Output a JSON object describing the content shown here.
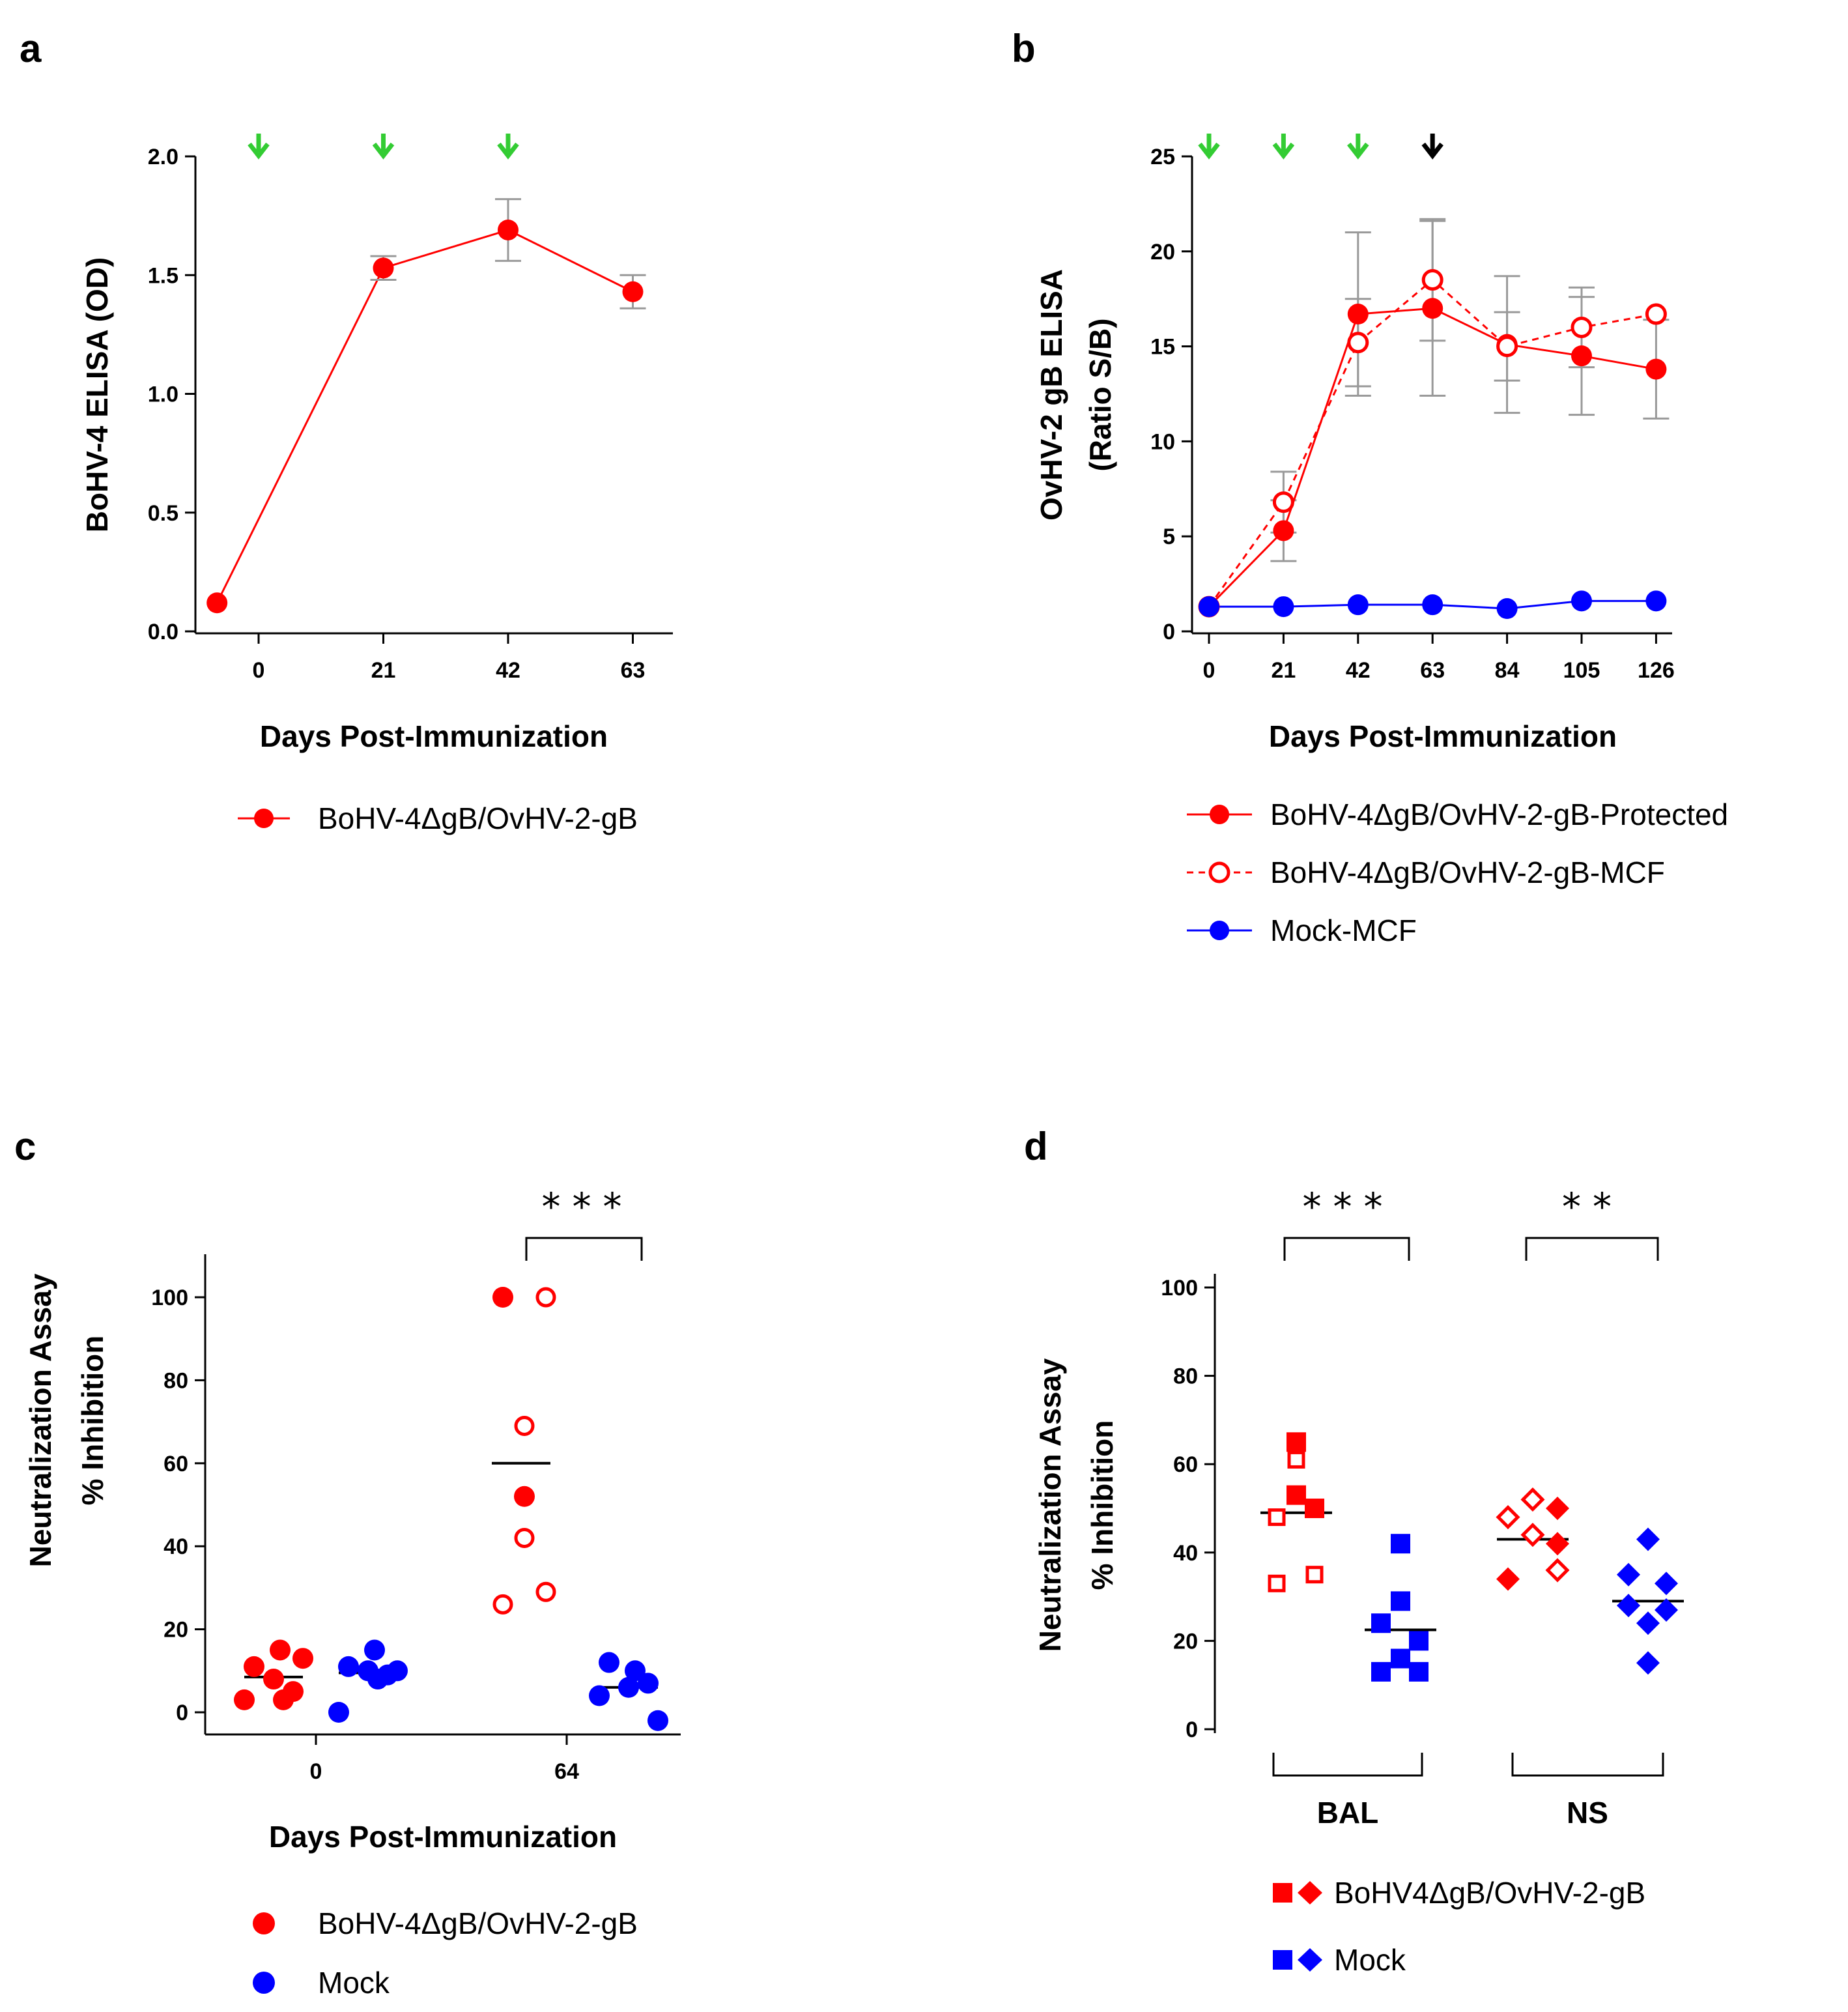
{
  "chart_data": [
    {
      "panel": "a",
      "type": "line",
      "xlabel": "Days Post-Immunization",
      "ylabel": "BoHV-4 ELISA (OD)",
      "ylim": [
        0,
        2.0
      ],
      "yticks": [
        "0.0",
        "0.5",
        "1.0",
        "1.5",
        "2.0"
      ],
      "xticks": [
        "0",
        "21",
        "42",
        "63"
      ],
      "arrows": {
        "color": "#33cc33",
        "days": [
          0,
          21,
          42
        ]
      },
      "series": [
        {
          "name": "BoHV-4ΔgB/OvHV-2-gB",
          "color": "#ff0000",
          "marker": "filled-circle",
          "line": "solid",
          "x": [
            -7,
            21,
            42,
            63
          ],
          "y": [
            0.12,
            1.53,
            1.69,
            1.43
          ],
          "err": [
            0,
            0.05,
            0.13,
            0.07
          ]
        }
      ],
      "legend": [
        "BoHV-4ΔgB/OvHV-2-gB"
      ]
    },
    {
      "panel": "b",
      "type": "line",
      "xlabel": "Days Post-Immunization",
      "ylabel": [
        "OvHV-2 gB ELISA",
        "(Ratio S/B)"
      ],
      "ylim": [
        0,
        25
      ],
      "yticks": [
        "0",
        "5",
        "10",
        "15",
        "20",
        "25"
      ],
      "xticks": [
        "0",
        "21",
        "42",
        "63",
        "84",
        "105",
        "126"
      ],
      "arrows": {
        "green_days": [
          0,
          21,
          42
        ],
        "black_days": [
          63
        ]
      },
      "series": [
        {
          "name": "BoHV-4ΔgB/OvHV-2-gB-Protected",
          "color": "#ff0000",
          "marker": "filled-circle",
          "line": "solid",
          "x": [
            0,
            21,
            42,
            63,
            84,
            105,
            126
          ],
          "y": [
            1.3,
            5.3,
            16.7,
            17.0,
            15.1,
            14.5,
            13.8
          ],
          "err": [
            0,
            1.6,
            4.3,
            4.6,
            3.6,
            3.1,
            2.6
          ]
        },
        {
          "name": "BoHV-4ΔgB/OvHV-2-gB-MCF",
          "color": "#ff0000",
          "marker": "open-circle",
          "line": "dashed",
          "x": [
            0,
            21,
            42,
            63,
            84,
            105,
            126
          ],
          "y": [
            1.3,
            6.8,
            15.2,
            18.5,
            15.0,
            16.0,
            16.7
          ],
          "err": [
            0,
            1.6,
            2.3,
            3.2,
            1.8,
            2.1,
            0
          ]
        },
        {
          "name": "Mock-MCF",
          "color": "#0000ff",
          "marker": "filled-circle",
          "line": "solid",
          "x": [
            0,
            21,
            42,
            63,
            84,
            105,
            126
          ],
          "y": [
            1.3,
            1.3,
            1.4,
            1.4,
            1.2,
            1.6,
            1.6
          ],
          "err": [
            0,
            0,
            0,
            0,
            0,
            0,
            0
          ]
        }
      ],
      "legend": [
        "BoHV-4ΔgB/OvHV-2-gB-Protected",
        "BoHV-4ΔgB/OvHV-2-gB-MCF",
        "Mock-MCF"
      ]
    },
    {
      "panel": "c",
      "type": "scatter",
      "xlabel": "Days Post-Immunization",
      "ylabel": [
        "Neutralization Assay",
        "% Inhibition"
      ],
      "ylim": [
        -5,
        110
      ],
      "yticks": [
        "0",
        "20",
        "40",
        "60",
        "80",
        "100"
      ],
      "categories": [
        "0",
        "64"
      ],
      "significance": "***",
      "groups": [
        {
          "name": "BoHV-4ΔgB/OvHV-2-gB",
          "day": "0",
          "color": "#ff0000",
          "mean": 8.5,
          "filled": [
            11,
            15,
            5,
            3,
            8,
            13,
            3
          ],
          "open": []
        },
        {
          "name": "Mock",
          "day": "0",
          "color": "#0000ff",
          "mean": 9.5,
          "filled": [
            11,
            15,
            9,
            0,
            10,
            10,
            8
          ],
          "open": []
        },
        {
          "name": "BoHV-4ΔgB/OvHV-2-gB",
          "day": "64",
          "color": "#ff0000",
          "mean": 60,
          "filled": [
            100,
            52
          ],
          "open": [
            100,
            69,
            42,
            26,
            29
          ]
        },
        {
          "name": "Mock",
          "day": "64",
          "color": "#0000ff",
          "mean": 6,
          "filled": [
            12,
            10,
            7,
            4,
            6,
            -2
          ],
          "open": []
        }
      ],
      "legend": [
        "BoHV-4ΔgB/OvHV-2-gB",
        "Mock"
      ]
    },
    {
      "panel": "d",
      "type": "scatter",
      "ylabel": [
        "Neutralization Assay",
        "% Inhibition"
      ],
      "ylim": [
        0,
        100
      ],
      "yticks": [
        "0",
        "20",
        "40",
        "60",
        "80",
        "100"
      ],
      "categories": [
        "BAL",
        "NS"
      ],
      "significance": [
        "***",
        "**"
      ],
      "groups": [
        {
          "name": "BoHV4ΔgB/OvHV-2-gB",
          "site": "BAL",
          "marker": "square",
          "color": "#ff0000",
          "mean": 49,
          "filled": [
            65,
            53,
            50
          ],
          "open": [
            61,
            48,
            35,
            33
          ]
        },
        {
          "name": "Mock",
          "site": "BAL",
          "marker": "square",
          "color": "#0000ff",
          "mean": 22.5,
          "filled": [
            42,
            29,
            24,
            20,
            16,
            13,
            13
          ],
          "open": []
        },
        {
          "name": "BoHV4ΔgB/OvHV-2-gB",
          "site": "NS",
          "marker": "diamond",
          "color": "#ff0000",
          "mean": 43,
          "filled": [
            50,
            34,
            42
          ],
          "open": [
            52,
            48,
            44,
            36
          ]
        },
        {
          "name": "Mock",
          "site": "NS",
          "marker": "diamond",
          "color": "#0000ff",
          "mean": 29,
          "filled": [
            43,
            35,
            33,
            28,
            27,
            24,
            15
          ],
          "open": []
        }
      ],
      "legend": [
        "BoHV4ΔgB/OvHV-2-gB",
        "Mock"
      ]
    }
  ]
}
